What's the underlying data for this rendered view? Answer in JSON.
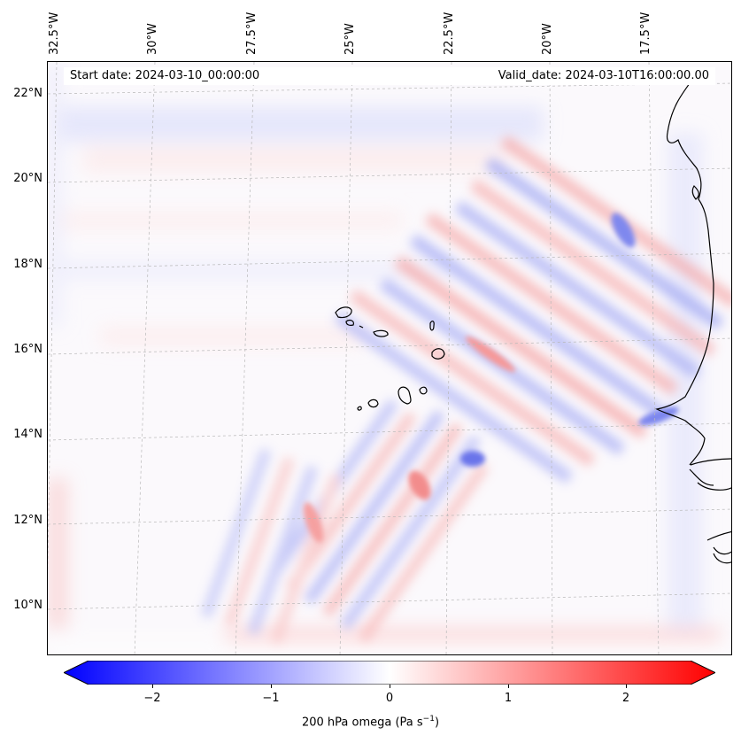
{
  "map": {
    "start_date": "Start date: 2024-03-10_00:00:00",
    "valid_date": "Valid_date: 2024-03-10T16:00:00.00",
    "lon_labels": [
      "32.5°W",
      "30°W",
      "27.5°W",
      "25°W",
      "22.5°W",
      "20°W",
      "17.5°W"
    ],
    "lat_labels": [
      "22°N",
      "20°N",
      "18°N",
      "16°N",
      "14°N",
      "12°N",
      "10°N"
    ],
    "colorbar": {
      "ticks": [
        "−2",
        "−1",
        "0",
        "1",
        "2"
      ],
      "label": "200 hPa omega (Pa s",
      "label_sup": "−1",
      "label_end": ")",
      "range": [
        -2.6,
        2.6
      ],
      "cmap": "bwr",
      "extend": "both"
    },
    "projection_note": "",
    "colors": {
      "negative": "#0000ff",
      "neutral": "#ffffff",
      "positive": "#ff0000",
      "coastline": "#000000",
      "grid": "#b8b8b8"
    }
  }
}
